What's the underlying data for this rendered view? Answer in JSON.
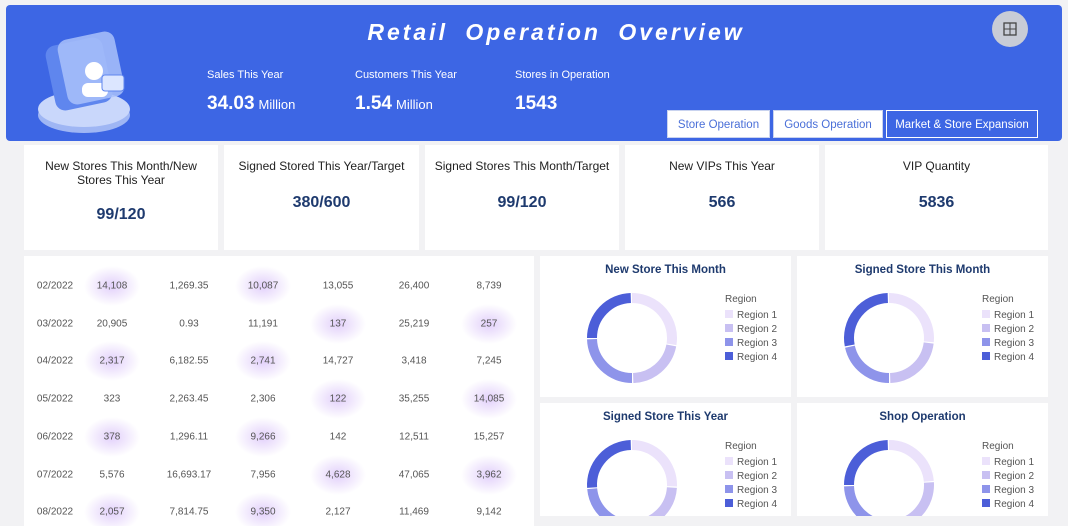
{
  "header": {
    "title": "Retail Operation Overview",
    "metrics": [
      {
        "label": "Sales This Year",
        "value": "34.03",
        "unit": "Million"
      },
      {
        "label": "Customers This Year",
        "value": "1.54",
        "unit": "Million"
      },
      {
        "label": "Stores in Operation",
        "value": "1543"
      }
    ],
    "tabs": [
      "Store Operation",
      "Goods Operation",
      "Market & Store Expansion"
    ]
  },
  "kpis": [
    {
      "label": "New Stores This Month/New Stores This Year",
      "value": "99/120"
    },
    {
      "label": "Signed Stored This Year/Target",
      "value": "380/600"
    },
    {
      "label": "Signed Stores This Month/Target",
      "value": "99/120"
    },
    {
      "label": "New VIPs This Year",
      "value": "566"
    },
    {
      "label": "VIP Quantity",
      "value": "5836"
    }
  ],
  "table": {
    "rows": [
      [
        "02/2022",
        "14,108",
        "1,269.35",
        "10,087",
        "13,055",
        "26,400",
        "8,739"
      ],
      [
        "03/2022",
        "20,905",
        "0.93",
        "11,191",
        "137",
        "25,219",
        "257"
      ],
      [
        "04/2022",
        "2,317",
        "6,182.55",
        "2,741",
        "14,727",
        "3,418",
        "7,245"
      ],
      [
        "05/2022",
        "323",
        "2,263.45",
        "2,306",
        "122",
        "35,255",
        "14,085"
      ],
      [
        "06/2022",
        "378",
        "1,296.11",
        "9,266",
        "142",
        "12,511",
        "15,257"
      ],
      [
        "07/2022",
        "5,576",
        "16,693.17",
        "7,956",
        "4,628",
        "47,065",
        "3,962"
      ],
      [
        "08/2022",
        "2,057",
        "7,814.75",
        "9,350",
        "2,127",
        "11,469",
        "9,142"
      ]
    ]
  },
  "donuts": [
    {
      "type": "pie",
      "title": "New Store This Month",
      "legend_title": "Region",
      "series": [
        {
          "name": "Region 1",
          "color": "#ebe2fb",
          "value": 28
        },
        {
          "name": "Region 2",
          "color": "#c8c0f2",
          "value": 22
        },
        {
          "name": "Region 3",
          "color": "#8e94ea",
          "value": 25
        },
        {
          "name": "Region 4",
          "color": "#4c5ed8",
          "value": 25
        }
      ]
    },
    {
      "type": "pie",
      "title": "Signed Store This Month",
      "legend_title": "Region",
      "series": [
        {
          "name": "Region 1",
          "color": "#ebe2fb",
          "value": 27
        },
        {
          "name": "Region 2",
          "color": "#c8c0f2",
          "value": 23
        },
        {
          "name": "Region 3",
          "color": "#8e94ea",
          "value": 22
        },
        {
          "name": "Region 4",
          "color": "#4c5ed8",
          "value": 28
        }
      ]
    },
    {
      "type": "pie",
      "title": "Signed Store This Year",
      "legend_title": "Region",
      "series": [
        {
          "name": "Region 1",
          "color": "#ebe2fb",
          "value": 26
        },
        {
          "name": "Region 2",
          "color": "#c8c0f2",
          "value": 24
        },
        {
          "name": "Region 3",
          "color": "#8e94ea",
          "value": 24
        },
        {
          "name": "Region 4",
          "color": "#4c5ed8",
          "value": 26
        }
      ]
    },
    {
      "type": "pie",
      "title": "Shop Operation",
      "legend_title": "Region",
      "series": [
        {
          "name": "Region 1",
          "color": "#ebe2fb",
          "value": 24
        },
        {
          "name": "Region 2",
          "color": "#c8c0f2",
          "value": 26
        },
        {
          "name": "Region 3",
          "color": "#8e94ea",
          "value": 25
        },
        {
          "name": "Region 4",
          "color": "#4c5ed8",
          "value": 25
        }
      ]
    }
  ]
}
